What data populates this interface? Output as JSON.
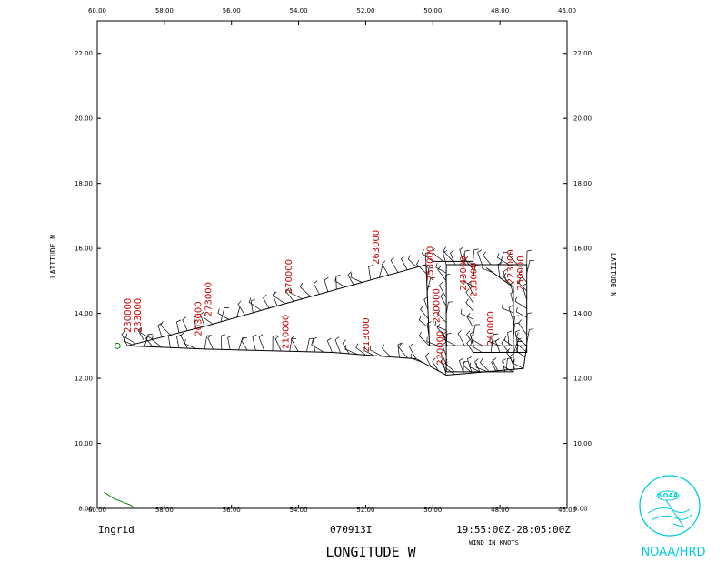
{
  "chart_data": {
    "type": "scatter",
    "subtype": "flight-track wind-barb plot",
    "xlabel": "LONGITUDE   W",
    "ylabel_left": "LATITUDE   N",
    "ylabel_right": "LATITUDE   N",
    "xlim": [
      60,
      46
    ],
    "ylim": [
      8,
      23
    ],
    "x_ticks": [
      "60.00",
      "58.00",
      "56.00",
      "54.00",
      "52.00",
      "50.00",
      "48.00",
      "46.00"
    ],
    "y_ticks": [
      "8.00",
      "10.00",
      "12.00",
      "14.00",
      "16.00",
      "18.00",
      "20.00",
      "22.00"
    ],
    "storm_name": "Ingrid",
    "mission_id": "070913I",
    "time_range": "19:55:00Z-28:05:00Z",
    "wind_units": "WIND IN KNOTS",
    "track_color": "#000000",
    "label_color": "#cc0000",
    "coast_color": "#008000",
    "track_points": [
      [
        59.1,
        13.0
      ],
      [
        56.8,
        13.6
      ],
      [
        54.4,
        14.3
      ],
      [
        51.6,
        15.1
      ],
      [
        50.2,
        15.5
      ],
      [
        50.1,
        13.0
      ],
      [
        47.2,
        13.0
      ],
      [
        47.3,
        12.3
      ],
      [
        49.6,
        12.1
      ],
      [
        50.5,
        12.6
      ],
      [
        53.0,
        12.8
      ],
      [
        56.8,
        12.9
      ],
      [
        59.1,
        13.0
      ]
    ],
    "pattern_points": [
      [
        50.0,
        15.6
      ],
      [
        48.8,
        15.6
      ],
      [
        48.8,
        12.8
      ],
      [
        47.2,
        12.8
      ],
      [
        47.2,
        15.5
      ],
      [
        49.6,
        15.5
      ],
      [
        49.6,
        12.2
      ],
      [
        47.6,
        12.2
      ],
      [
        47.6,
        14.8
      ],
      [
        48.4,
        15.4
      ]
    ],
    "time_labels": [
      {
        "text": "230000",
        "lon": 59.0,
        "lat": 13.4
      },
      {
        "text": "233000",
        "lon": 58.7,
        "lat": 13.4
      },
      {
        "text": "203000",
        "lon": 56.9,
        "lat": 13.3
      },
      {
        "text": "273000",
        "lon": 56.6,
        "lat": 13.9
      },
      {
        "text": "270000",
        "lon": 54.2,
        "lat": 14.6
      },
      {
        "text": "263000",
        "lon": 51.6,
        "lat": 15.5
      },
      {
        "text": "210000",
        "lon": 54.3,
        "lat": 12.9
      },
      {
        "text": "213000",
        "lon": 51.9,
        "lat": 12.8
      },
      {
        "text": "253000",
        "lon": 50.0,
        "lat": 15.0
      },
      {
        "text": "200000",
        "lon": 49.8,
        "lat": 13.7
      },
      {
        "text": "220000",
        "lon": 49.7,
        "lat": 12.4
      },
      {
        "text": "243000",
        "lon": 49.0,
        "lat": 14.7
      },
      {
        "text": "233000",
        "lon": 48.7,
        "lat": 14.5
      },
      {
        "text": "240000",
        "lon": 48.2,
        "lat": 13.0
      },
      {
        "text": "223000",
        "lon": 47.6,
        "lat": 14.9
      },
      {
        "text": "250000",
        "lon": 47.3,
        "lat": 14.7
      }
    ],
    "grid": false,
    "legend": "none"
  },
  "logo": {
    "text": "NOAA/HRD",
    "badge": "NOAA",
    "color": "#00ccdd"
  }
}
